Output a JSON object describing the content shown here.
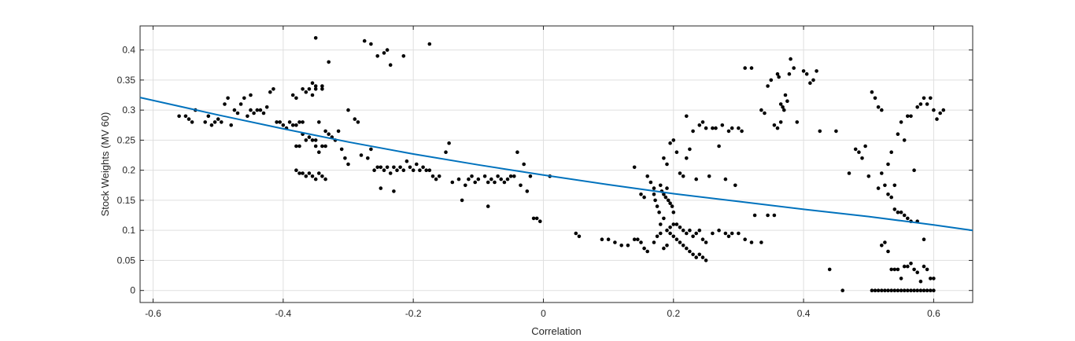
{
  "chart_data": {
    "type": "scatter",
    "xlabel": "Correlation",
    "ylabel": "Stock Weights (MV 60)",
    "xlim": [
      -0.62,
      0.66
    ],
    "ylim": [
      -0.02,
      0.44
    ],
    "xticks": [
      -0.6,
      -0.4,
      -0.2,
      0,
      0.2,
      0.4,
      0.6
    ],
    "xtick_labels": [
      "-0.6",
      "-0.4",
      "-0.2",
      "0",
      "0.2",
      "0.4",
      "0.6"
    ],
    "yticks": [
      0,
      0.05,
      0.1,
      0.15,
      0.2,
      0.25,
      0.3,
      0.35,
      0.4
    ],
    "ytick_labels": [
      "0",
      "0.05",
      "0.1",
      "0.15",
      "0.2",
      "0.25",
      "0.3",
      "0.35",
      "0.4"
    ],
    "grid": true,
    "colors": {
      "points": "#000000",
      "fit": "#0072BD",
      "grid": "#dfdfdf",
      "axis": "#262626"
    },
    "fit_line": {
      "x": [
        -0.62,
        -0.5,
        -0.4,
        -0.3,
        -0.2,
        -0.1,
        0,
        0.1,
        0.2,
        0.3,
        0.4,
        0.5,
        0.6,
        0.66
      ],
      "y": [
        0.321,
        0.292,
        0.269,
        0.247,
        0.227,
        0.209,
        0.192,
        0.176,
        0.161,
        0.148,
        0.135,
        0.123,
        0.109,
        0.1
      ]
    },
    "points": [
      [
        -0.56,
        0.29
      ],
      [
        -0.55,
        0.29
      ],
      [
        -0.545,
        0.285
      ],
      [
        -0.54,
        0.28
      ],
      [
        -0.535,
        0.3
      ],
      [
        -0.52,
        0.28
      ],
      [
        -0.515,
        0.29
      ],
      [
        -0.51,
        0.275
      ],
      [
        -0.505,
        0.28
      ],
      [
        -0.5,
        0.285
      ],
      [
        -0.495,
        0.28
      ],
      [
        -0.49,
        0.31
      ],
      [
        -0.485,
        0.32
      ],
      [
        -0.48,
        0.275
      ],
      [
        -0.475,
        0.3
      ],
      [
        -0.47,
        0.295
      ],
      [
        -0.465,
        0.31
      ],
      [
        -0.46,
        0.32
      ],
      [
        -0.455,
        0.29
      ],
      [
        -0.45,
        0.325
      ],
      [
        -0.45,
        0.3
      ],
      [
        -0.445,
        0.295
      ],
      [
        -0.44,
        0.3
      ],
      [
        -0.435,
        0.3
      ],
      [
        -0.43,
        0.295
      ],
      [
        -0.425,
        0.305
      ],
      [
        -0.42,
        0.33
      ],
      [
        -0.415,
        0.335
      ],
      [
        -0.41,
        0.28
      ],
      [
        -0.405,
        0.28
      ],
      [
        -0.4,
        0.275
      ],
      [
        -0.395,
        0.27
      ],
      [
        -0.39,
        0.28
      ],
      [
        -0.385,
        0.275
      ],
      [
        -0.38,
        0.275
      ],
      [
        -0.375,
        0.28
      ],
      [
        -0.37,
        0.28
      ],
      [
        -0.365,
        0.33
      ],
      [
        -0.36,
        0.335
      ],
      [
        -0.355,
        0.325
      ],
      [
        -0.35,
        0.25
      ],
      [
        -0.345,
        0.28
      ],
      [
        -0.38,
        0.24
      ],
      [
        -0.375,
        0.24
      ],
      [
        -0.37,
        0.26
      ],
      [
        -0.365,
        0.25
      ],
      [
        -0.36,
        0.255
      ],
      [
        -0.355,
        0.25
      ],
      [
        -0.35,
        0.24
      ],
      [
        -0.345,
        0.23
      ],
      [
        -0.34,
        0.24
      ],
      [
        -0.335,
        0.24
      ],
      [
        -0.33,
        0.26
      ],
      [
        -0.325,
        0.255
      ],
      [
        -0.32,
        0.25
      ],
      [
        -0.315,
        0.265
      ],
      [
        -0.31,
        0.235
      ],
      [
        -0.305,
        0.22
      ],
      [
        -0.3,
        0.21
      ],
      [
        -0.38,
        0.2
      ],
      [
        -0.375,
        0.195
      ],
      [
        -0.37,
        0.195
      ],
      [
        -0.365,
        0.19
      ],
      [
        -0.36,
        0.195
      ],
      [
        -0.355,
        0.19
      ],
      [
        -0.35,
        0.185
      ],
      [
        -0.345,
        0.195
      ],
      [
        -0.34,
        0.19
      ],
      [
        -0.335,
        0.185
      ],
      [
        -0.385,
        0.325
      ],
      [
        -0.38,
        0.32
      ],
      [
        -0.37,
        0.335
      ],
      [
        -0.355,
        0.345
      ],
      [
        -0.35,
        0.34
      ],
      [
        -0.35,
        0.335
      ],
      [
        -0.35,
        0.42
      ],
      [
        -0.34,
        0.335
      ],
      [
        -0.34,
        0.34
      ],
      [
        -0.335,
        0.265
      ],
      [
        -0.33,
        0.38
      ],
      [
        -0.3,
        0.3
      ],
      [
        -0.29,
        0.285
      ],
      [
        -0.285,
        0.28
      ],
      [
        -0.28,
        0.225
      ],
      [
        -0.27,
        0.22
      ],
      [
        -0.265,
        0.235
      ],
      [
        -0.26,
        0.2
      ],
      [
        -0.255,
        0.205
      ],
      [
        -0.25,
        0.205
      ],
      [
        -0.245,
        0.2
      ],
      [
        -0.24,
        0.205
      ],
      [
        -0.235,
        0.195
      ],
      [
        -0.23,
        0.205
      ],
      [
        -0.225,
        0.2
      ],
      [
        -0.22,
        0.205
      ],
      [
        -0.215,
        0.2
      ],
      [
        -0.21,
        0.215
      ],
      [
        -0.205,
        0.205
      ],
      [
        -0.2,
        0.2
      ],
      [
        -0.195,
        0.21
      ],
      [
        -0.19,
        0.2
      ],
      [
        -0.185,
        0.205
      ],
      [
        -0.18,
        0.2
      ],
      [
        -0.175,
        0.2
      ],
      [
        -0.275,
        0.415
      ],
      [
        -0.265,
        0.41
      ],
      [
        -0.255,
        0.39
      ],
      [
        -0.245,
        0.395
      ],
      [
        -0.24,
        0.4
      ],
      [
        -0.235,
        0.375
      ],
      [
        -0.215,
        0.39
      ],
      [
        -0.175,
        0.41
      ],
      [
        -0.25,
        0.17
      ],
      [
        -0.23,
        0.165
      ],
      [
        -0.17,
        0.19
      ],
      [
        -0.165,
        0.185
      ],
      [
        -0.16,
        0.19
      ],
      [
        -0.15,
        0.23
      ],
      [
        -0.145,
        0.245
      ],
      [
        -0.14,
        0.18
      ],
      [
        -0.13,
        0.185
      ],
      [
        -0.125,
        0.15
      ],
      [
        -0.12,
        0.175
      ],
      [
        -0.115,
        0.185
      ],
      [
        -0.11,
        0.19
      ],
      [
        -0.105,
        0.18
      ],
      [
        -0.1,
        0.185
      ],
      [
        -0.09,
        0.19
      ],
      [
        -0.085,
        0.18
      ],
      [
        -0.08,
        0.185
      ],
      [
        -0.075,
        0.18
      ],
      [
        -0.07,
        0.19
      ],
      [
        -0.065,
        0.185
      ],
      [
        -0.06,
        0.18
      ],
      [
        -0.055,
        0.185
      ],
      [
        -0.05,
        0.19
      ],
      [
        -0.045,
        0.19
      ],
      [
        -0.04,
        0.23
      ],
      [
        -0.035,
        0.175
      ],
      [
        -0.03,
        0.21
      ],
      [
        -0.025,
        0.165
      ],
      [
        -0.02,
        0.19
      ],
      [
        -0.015,
        0.12
      ],
      [
        -0.01,
        0.12
      ],
      [
        -0.005,
        0.115
      ],
      [
        -0.085,
        0.14
      ],
      [
        0.01,
        0.19
      ],
      [
        0.05,
        0.095
      ],
      [
        0.055,
        0.09
      ],
      [
        0.09,
        0.085
      ],
      [
        0.1,
        0.085
      ],
      [
        0.11,
        0.08
      ],
      [
        0.12,
        0.075
      ],
      [
        0.13,
        0.075
      ],
      [
        0.14,
        0.085
      ],
      [
        0.145,
        0.085
      ],
      [
        0.15,
        0.08
      ],
      [
        0.155,
        0.07
      ],
      [
        0.16,
        0.065
      ],
      [
        0.14,
        0.205
      ],
      [
        0.15,
        0.16
      ],
      [
        0.155,
        0.155
      ],
      [
        0.16,
        0.19
      ],
      [
        0.165,
        0.18
      ],
      [
        0.17,
        0.17
      ],
      [
        0.17,
        0.16
      ],
      [
        0.172,
        0.15
      ],
      [
        0.175,
        0.14
      ],
      [
        0.178,
        0.13
      ],
      [
        0.18,
        0.175
      ],
      [
        0.182,
        0.165
      ],
      [
        0.185,
        0.16
      ],
      [
        0.188,
        0.155
      ],
      [
        0.19,
        0.17
      ],
      [
        0.192,
        0.15
      ],
      [
        0.195,
        0.145
      ],
      [
        0.198,
        0.14
      ],
      [
        0.2,
        0.13
      ],
      [
        0.185,
        0.12
      ],
      [
        0.18,
        0.11
      ],
      [
        0.19,
        0.1
      ],
      [
        0.195,
        0.095
      ],
      [
        0.2,
        0.09
      ],
      [
        0.205,
        0.085
      ],
      [
        0.21,
        0.08
      ],
      [
        0.215,
        0.075
      ],
      [
        0.22,
        0.07
      ],
      [
        0.225,
        0.065
      ],
      [
        0.23,
        0.06
      ],
      [
        0.235,
        0.055
      ],
      [
        0.24,
        0.06
      ],
      [
        0.245,
        0.055
      ],
      [
        0.25,
        0.05
      ],
      [
        0.17,
        0.08
      ],
      [
        0.175,
        0.09
      ],
      [
        0.18,
        0.095
      ],
      [
        0.185,
        0.07
      ],
      [
        0.19,
        0.075
      ],
      [
        0.195,
        0.105
      ],
      [
        0.2,
        0.11
      ],
      [
        0.205,
        0.11
      ],
      [
        0.21,
        0.105
      ],
      [
        0.215,
        0.1
      ],
      [
        0.22,
        0.095
      ],
      [
        0.225,
        0.1
      ],
      [
        0.23,
        0.09
      ],
      [
        0.235,
        0.095
      ],
      [
        0.24,
        0.1
      ],
      [
        0.245,
        0.085
      ],
      [
        0.25,
        0.08
      ],
      [
        0.185,
        0.22
      ],
      [
        0.19,
        0.21
      ],
      [
        0.195,
        0.245
      ],
      [
        0.2,
        0.25
      ],
      [
        0.205,
        0.23
      ],
      [
        0.21,
        0.195
      ],
      [
        0.215,
        0.19
      ],
      [
        0.22,
        0.22
      ],
      [
        0.225,
        0.235
      ],
      [
        0.23,
        0.265
      ],
      [
        0.22,
        0.29
      ],
      [
        0.235,
        0.185
      ],
      [
        0.24,
        0.275
      ],
      [
        0.245,
        0.28
      ],
      [
        0.25,
        0.27
      ],
      [
        0.255,
        0.19
      ],
      [
        0.26,
        0.27
      ],
      [
        0.265,
        0.27
      ],
      [
        0.27,
        0.24
      ],
      [
        0.275,
        0.275
      ],
      [
        0.28,
        0.185
      ],
      [
        0.285,
        0.265
      ],
      [
        0.29,
        0.27
      ],
      [
        0.295,
        0.175
      ],
      [
        0.3,
        0.27
      ],
      [
        0.305,
        0.265
      ],
      [
        0.26,
        0.095
      ],
      [
        0.27,
        0.1
      ],
      [
        0.28,
        0.095
      ],
      [
        0.285,
        0.09
      ],
      [
        0.29,
        0.095
      ],
      [
        0.3,
        0.095
      ],
      [
        0.31,
        0.085
      ],
      [
        0.32,
        0.08
      ],
      [
        0.325,
        0.125
      ],
      [
        0.335,
        0.08
      ],
      [
        0.345,
        0.125
      ],
      [
        0.355,
        0.125
      ],
      [
        0.31,
        0.37
      ],
      [
        0.32,
        0.37
      ],
      [
        0.335,
        0.3
      ],
      [
        0.34,
        0.295
      ],
      [
        0.345,
        0.34
      ],
      [
        0.35,
        0.35
      ],
      [
        0.355,
        0.275
      ],
      [
        0.36,
        0.36
      ],
      [
        0.362,
        0.355
      ],
      [
        0.365,
        0.31
      ],
      [
        0.368,
        0.305
      ],
      [
        0.37,
        0.3
      ],
      [
        0.372,
        0.325
      ],
      [
        0.375,
        0.315
      ],
      [
        0.378,
        0.36
      ],
      [
        0.38,
        0.385
      ],
      [
        0.385,
        0.37
      ],
      [
        0.39,
        0.28
      ],
      [
        0.36,
        0.27
      ],
      [
        0.365,
        0.28
      ],
      [
        0.4,
        0.365
      ],
      [
        0.405,
        0.36
      ],
      [
        0.41,
        0.345
      ],
      [
        0.415,
        0.35
      ],
      [
        0.42,
        0.365
      ],
      [
        0.425,
        0.265
      ],
      [
        0.45,
        0.265
      ],
      [
        0.44,
        0.035
      ],
      [
        0.46,
        0.0
      ],
      [
        0.47,
        0.195
      ],
      [
        0.48,
        0.235
      ],
      [
        0.485,
        0.23
      ],
      [
        0.49,
        0.22
      ],
      [
        0.495,
        0.24
      ],
      [
        0.5,
        0.19
      ],
      [
        0.505,
        0.33
      ],
      [
        0.51,
        0.32
      ],
      [
        0.515,
        0.305
      ],
      [
        0.52,
        0.3
      ],
      [
        0.52,
        0.195
      ],
      [
        0.53,
        0.21
      ],
      [
        0.535,
        0.23
      ],
      [
        0.54,
        0.175
      ],
      [
        0.545,
        0.26
      ],
      [
        0.55,
        0.28
      ],
      [
        0.555,
        0.25
      ],
      [
        0.56,
        0.29
      ],
      [
        0.565,
        0.29
      ],
      [
        0.57,
        0.2
      ],
      [
        0.575,
        0.305
      ],
      [
        0.58,
        0.31
      ],
      [
        0.585,
        0.32
      ],
      [
        0.59,
        0.31
      ],
      [
        0.595,
        0.32
      ],
      [
        0.6,
        0.3
      ],
      [
        0.605,
        0.285
      ],
      [
        0.61,
        0.295
      ],
      [
        0.615,
        0.3
      ],
      [
        0.515,
        0.17
      ],
      [
        0.525,
        0.175
      ],
      [
        0.53,
        0.16
      ],
      [
        0.535,
        0.155
      ],
      [
        0.54,
        0.135
      ],
      [
        0.545,
        0.13
      ],
      [
        0.55,
        0.13
      ],
      [
        0.555,
        0.125
      ],
      [
        0.56,
        0.12
      ],
      [
        0.565,
        0.115
      ],
      [
        0.575,
        0.115
      ],
      [
        0.585,
        0.085
      ],
      [
        0.52,
        0.075
      ],
      [
        0.525,
        0.08
      ],
      [
        0.53,
        0.065
      ],
      [
        0.535,
        0.035
      ],
      [
        0.54,
        0.035
      ],
      [
        0.545,
        0.035
      ],
      [
        0.55,
        0.02
      ],
      [
        0.555,
        0.04
      ],
      [
        0.56,
        0.04
      ],
      [
        0.565,
        0.045
      ],
      [
        0.57,
        0.035
      ],
      [
        0.575,
        0.03
      ],
      [
        0.58,
        0.015
      ],
      [
        0.585,
        0.04
      ],
      [
        0.59,
        0.035
      ],
      [
        0.595,
        0.02
      ],
      [
        0.6,
        0.02
      ],
      [
        0.505,
        0.0
      ],
      [
        0.51,
        0.0
      ],
      [
        0.515,
        0.0
      ],
      [
        0.52,
        0.0
      ],
      [
        0.525,
        0.0
      ],
      [
        0.53,
        0.0
      ],
      [
        0.535,
        0.0
      ],
      [
        0.54,
        0.0
      ],
      [
        0.545,
        0.0
      ],
      [
        0.55,
        0.0
      ],
      [
        0.555,
        0.0
      ],
      [
        0.56,
        0.0
      ],
      [
        0.565,
        0.0
      ],
      [
        0.57,
        0.0
      ],
      [
        0.575,
        0.0
      ],
      [
        0.58,
        0.0
      ],
      [
        0.585,
        0.0
      ],
      [
        0.59,
        0.0
      ],
      [
        0.595,
        0.0
      ],
      [
        0.6,
        0.0
      ]
    ]
  }
}
